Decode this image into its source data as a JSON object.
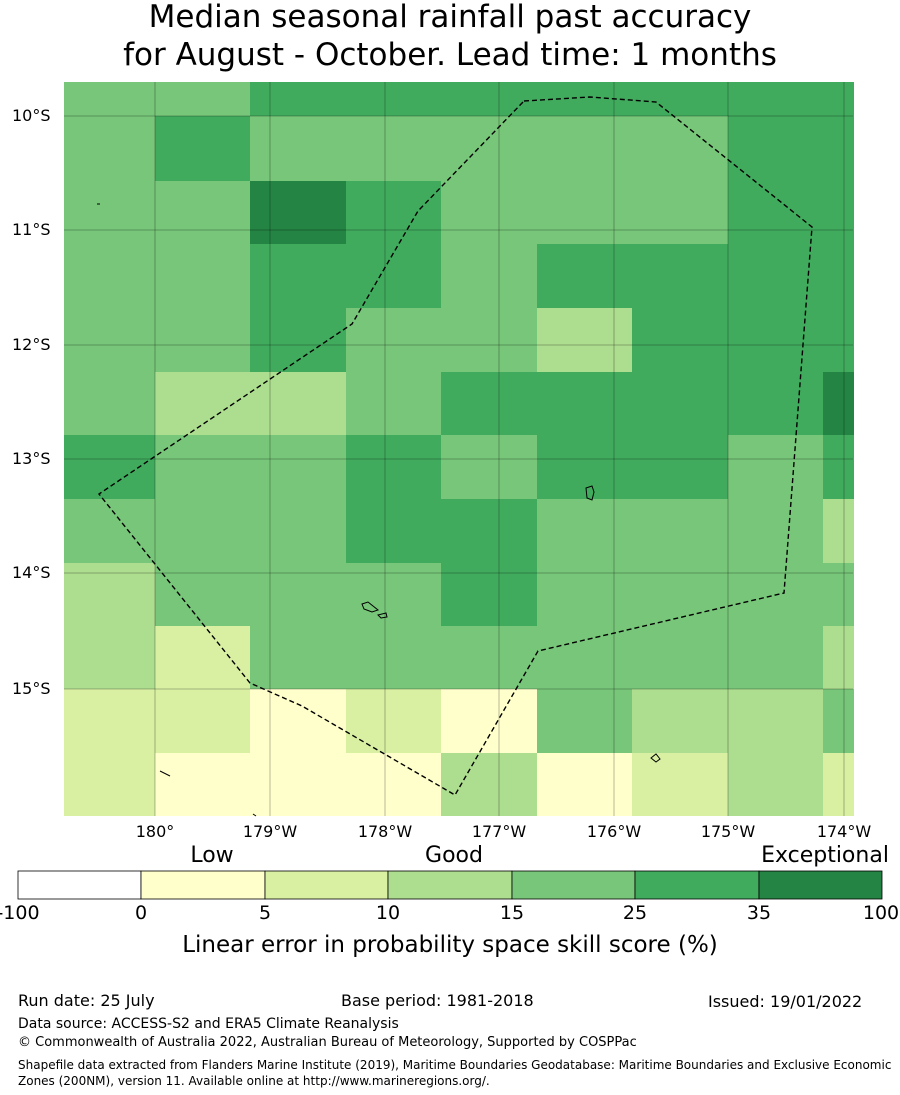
{
  "title": {
    "line1": "Median seasonal rainfall past accuracy",
    "line2": "for August - October. Lead time: 1 months"
  },
  "map": {
    "lat_labels": [
      "10°S",
      "11°S",
      "12°S",
      "13°S",
      "14°S",
      "15°S"
    ],
    "lon_labels": [
      "180°",
      "179°W",
      "178°W",
      "177°W",
      "176°W",
      "175°W",
      "174°W"
    ],
    "grid_colors": [
      [
        "#78c679",
        "#78c679",
        "#41ab5d",
        "#41ab5d",
        "#41ab5d",
        "#41ab5d",
        "#41ab5d",
        "#41ab5d",
        "#41ab5d"
      ],
      [
        "#78c679",
        "#41ab5d",
        "#78c679",
        "#78c679",
        "#78c679",
        "#78c679",
        "#78c679",
        "#41ab5d",
        "#41ab5d"
      ],
      [
        "#78c679",
        "#78c679",
        "#238443",
        "#41ab5d",
        "#78c679",
        "#78c679",
        "#78c679",
        "#41ab5d",
        "#41ab5d"
      ],
      [
        "#78c679",
        "#78c679",
        "#41ab5d",
        "#41ab5d",
        "#78c679",
        "#41ab5d",
        "#41ab5d",
        "#41ab5d",
        "#41ab5d"
      ],
      [
        "#78c679",
        "#78c679",
        "#41ab5d",
        "#78c679",
        "#78c679",
        "#addd8e",
        "#41ab5d",
        "#41ab5d",
        "#41ab5d"
      ],
      [
        "#78c679",
        "#addd8e",
        "#addd8e",
        "#78c679",
        "#41ab5d",
        "#41ab5d",
        "#41ab5d",
        "#41ab5d",
        "#238443"
      ],
      [
        "#41ab5d",
        "#78c679",
        "#78c679",
        "#41ab5d",
        "#78c679",
        "#41ab5d",
        "#41ab5d",
        "#78c679",
        "#41ab5d"
      ],
      [
        "#78c679",
        "#78c679",
        "#78c679",
        "#41ab5d",
        "#41ab5d",
        "#78c679",
        "#78c679",
        "#78c679",
        "#addd8e"
      ],
      [
        "#addd8e",
        "#78c679",
        "#78c679",
        "#78c679",
        "#41ab5d",
        "#78c679",
        "#78c679",
        "#78c679",
        "#78c679"
      ],
      [
        "#addd8e",
        "#d9f0a3",
        "#78c679",
        "#78c679",
        "#78c679",
        "#78c679",
        "#78c679",
        "#78c679",
        "#addd8e"
      ],
      [
        "#d9f0a3",
        "#d9f0a3",
        "#ffffcc",
        "#d9f0a3",
        "#ffffcc",
        "#78c679",
        "#addd8e",
        "#addd8e",
        "#78c679"
      ],
      [
        "#d9f0a3",
        "#ffffcc",
        "#ffffcc",
        "#ffffcc",
        "#addd8e",
        "#ffffcc",
        "#d9f0a3",
        "#addd8e",
        "#d9f0a3"
      ]
    ]
  },
  "legend": {
    "categories": [
      "Low",
      "Good",
      "Exceptional"
    ],
    "colors": [
      "#ffffff",
      "#ffffcc",
      "#d9f0a3",
      "#addd8e",
      "#78c679",
      "#41ab5d",
      "#238443"
    ],
    "ticks": [
      "-100",
      "0",
      "5",
      "10",
      "15",
      "25",
      "35",
      "100"
    ],
    "label": "Linear error in probability space skill score (%)"
  },
  "info": {
    "run_date": "Run date: 25 July",
    "base_period": "Base period: 1981-2018",
    "issued": "Issued: 19/01/2022",
    "data_source": "Data source: ACCESS-S2 and ERA5 Climate Reanalysis",
    "copyright": "© Commonwealth of Australia 2022, Australian Bureau of Meteorology, Supported by COSPPac",
    "shapefile_note": "Shapefile data extracted from Flanders Marine Institute (2019), Maritime Boundaries Geodatabase: Maritime Boundaries and Exclusive Economic Zones (200NM), version 11. Available online at http://www.marineregions.org/."
  }
}
